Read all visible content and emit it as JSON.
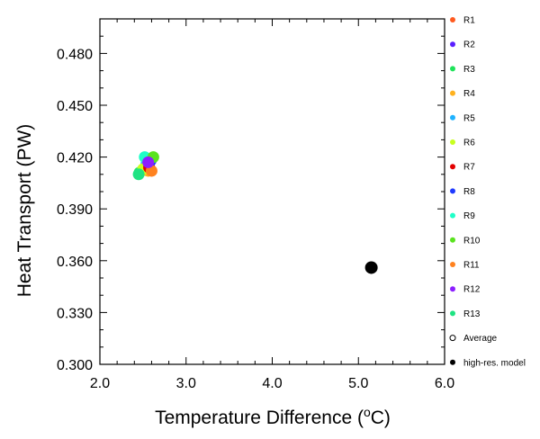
{
  "chart_data": {
    "type": "scatter",
    "xlabel": "Temperature Difference (",
    "xlabel_sup": "o",
    "xlabel_unit": "C)",
    "ylabel": "Heat Transport (PW)",
    "xlim": [
      2.0,
      6.0
    ],
    "ylim": [
      0.3,
      0.5
    ],
    "xticks": [
      "2.0",
      "3.0",
      "4.0",
      "5.0",
      "6.0"
    ],
    "yticks": [
      "0.300",
      "0.330",
      "0.360",
      "0.390",
      "0.420",
      "0.450",
      "0.480"
    ],
    "grid": false,
    "legend_position": "right",
    "series": [
      {
        "name": "R1",
        "color": "#ff5a1f",
        "x": 2.58,
        "y": 0.413
      },
      {
        "name": "R2",
        "color": "#5a1fff",
        "x": 2.57,
        "y": 0.415
      },
      {
        "name": "R3",
        "color": "#1fe35a",
        "x": 2.46,
        "y": 0.411
      },
      {
        "name": "R4",
        "color": "#ffb21f",
        "x": 2.56,
        "y": 0.412
      },
      {
        "name": "R5",
        "color": "#1fb2ff",
        "x": 2.54,
        "y": 0.416
      },
      {
        "name": "R6",
        "color": "#c8ff1f",
        "x": 2.5,
        "y": 0.413
      },
      {
        "name": "R7",
        "color": "#e30000",
        "x": 2.57,
        "y": 0.414
      },
      {
        "name": "R8",
        "color": "#1f3aff",
        "x": 2.59,
        "y": 0.418
      },
      {
        "name": "R9",
        "color": "#1fffc8",
        "x": 2.52,
        "y": 0.42
      },
      {
        "name": "R10",
        "color": "#5ae31f",
        "x": 2.62,
        "y": 0.42
      },
      {
        "name": "R11",
        "color": "#ff821f",
        "x": 2.6,
        "y": 0.412
      },
      {
        "name": "R12",
        "color": "#8c1fff",
        "x": 2.56,
        "y": 0.417
      },
      {
        "name": "R13",
        "color": "#1fe382",
        "x": 2.45,
        "y": 0.41
      },
      {
        "name": "Average",
        "color": "#000000",
        "open": true
      },
      {
        "name": "high-res. model",
        "color": "#000000",
        "x": 5.15,
        "y": 0.356,
        "large": true
      }
    ]
  }
}
